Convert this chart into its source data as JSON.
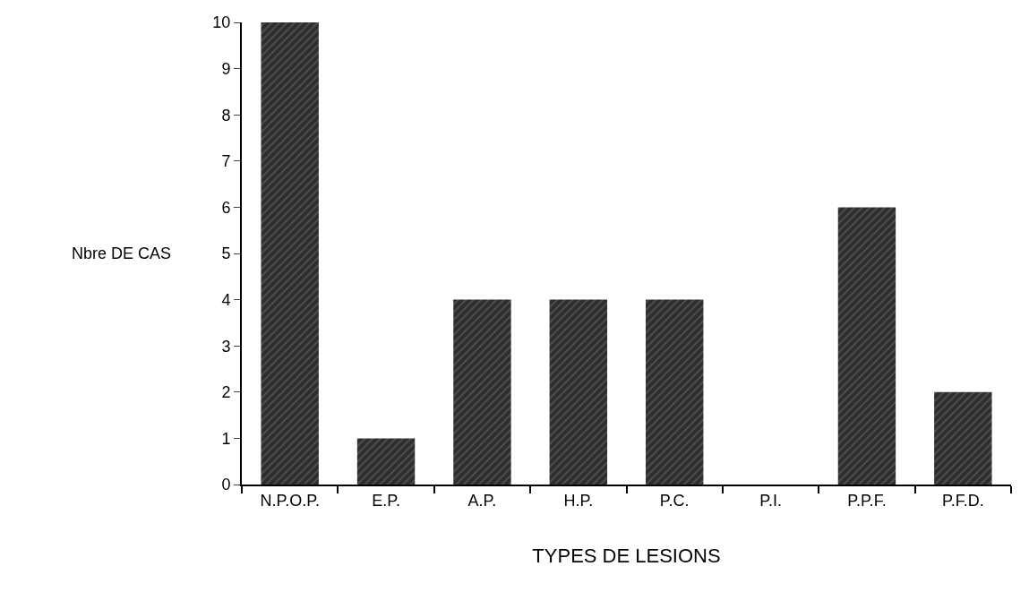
{
  "chart_data": {
    "type": "bar",
    "xlabel": "TYPES DE LESIONS",
    "ylabel": "Nbre DE CAS",
    "categories": [
      "N.P.O.P.",
      "E.P.",
      "A.P.",
      "H.P.",
      "P.C.",
      "P.I.",
      "P.P.F.",
      "P.F.D."
    ],
    "values": [
      10,
      1,
      4,
      4,
      4,
      0,
      6,
      2
    ],
    "color": "#2e2e2e",
    "ylim": [
      0,
      10
    ],
    "yticks": [
      0,
      1,
      2,
      3,
      4,
      5,
      6,
      7,
      8,
      9,
      10
    ]
  }
}
